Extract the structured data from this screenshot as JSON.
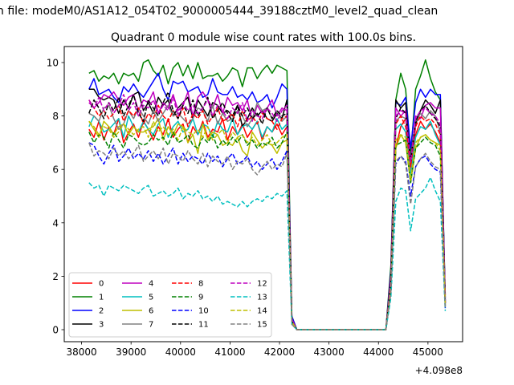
{
  "chart_data": {
    "type": "line",
    "suptitle": "n file: modeM0/AS1A12_054T02_9000005444_39188cztM0_level2_quad_clean",
    "title": "Quadrant 0 module wise count rates with 100.0s bins.",
    "xlabel": "",
    "ylabel": "",
    "x_offset_label": "+4.098e8",
    "xlim": [
      37650,
      45700
    ],
    "ylim": [
      -0.45,
      10.6
    ],
    "xticks": [
      38000,
      39000,
      40000,
      41000,
      42000,
      43000,
      44000,
      45000
    ],
    "yticks": [
      0,
      2,
      4,
      6,
      8,
      10
    ],
    "grid": false,
    "legend": {
      "placement": "lower-left",
      "columns": 4
    },
    "x": [
      38150,
      38250,
      38350,
      38450,
      38550,
      38650,
      38750,
      38850,
      38950,
      39050,
      39150,
      39250,
      39350,
      39450,
      39550,
      39650,
      39750,
      39850,
      39950,
      40050,
      40150,
      40250,
      40350,
      40450,
      40550,
      40650,
      40750,
      40850,
      40950,
      41050,
      41150,
      41250,
      41350,
      41450,
      41550,
      41650,
      41750,
      41850,
      41950,
      42050,
      42150,
      42250,
      42350,
      42450,
      42550,
      44150,
      44250,
      44350,
      44450,
      44550,
      44650,
      44750,
      44850,
      44950,
      45050,
      45150,
      45250,
      45350
    ],
    "series": [
      {
        "name": "0",
        "color": "#ff0000",
        "dash": "solid",
        "values": [
          7.5,
          7.2,
          7.8,
          7.1,
          7.6,
          7.3,
          7.9,
          7.0,
          7.4,
          7.7,
          7.2,
          7.8,
          7.5,
          7.1,
          7.6,
          7.3,
          7.9,
          7.2,
          7.5,
          7.7,
          7.0,
          7.6,
          7.3,
          7.8,
          7.2,
          7.5,
          7.4,
          7.9,
          7.1,
          7.6,
          7.3,
          7.7,
          7.2,
          7.5,
          7.8,
          7.1,
          7.6,
          7.4,
          7.7,
          7.3,
          7.6,
          0.4,
          0.0,
          0.0,
          0.0,
          0.0,
          1.4,
          6.8,
          7.6,
          7.9,
          6.1,
          7.3,
          7.8,
          7.5,
          7.7,
          7.4,
          7.0,
          1.3
        ]
      },
      {
        "name": "1",
        "color": "#008000",
        "dash": "solid",
        "values": [
          9.6,
          9.7,
          9.3,
          9.5,
          9.4,
          9.6,
          9.2,
          9.6,
          9.5,
          9.6,
          9.3,
          10.0,
          10.1,
          9.7,
          9.5,
          9.9,
          9.2,
          9.8,
          10.0,
          9.5,
          9.9,
          9.4,
          10.0,
          9.4,
          9.5,
          9.5,
          9.6,
          9.3,
          9.5,
          9.8,
          9.7,
          9.1,
          9.8,
          9.8,
          9.4,
          9.7,
          9.9,
          9.6,
          9.9,
          9.8,
          9.7,
          0.5,
          0.0,
          0.0,
          0.0,
          0.0,
          2.4,
          8.6,
          9.6,
          9.0,
          6.5,
          9.0,
          9.5,
          10.1,
          9.4,
          8.9,
          8.6,
          1.2
        ]
      },
      {
        "name": "2",
        "color": "#0000ff",
        "dash": "solid",
        "values": [
          9.0,
          9.4,
          8.8,
          8.9,
          9.0,
          8.7,
          8.5,
          9.1,
          8.9,
          9.2,
          8.9,
          8.7,
          9.0,
          9.3,
          9.6,
          9.0,
          8.6,
          9.3,
          9.2,
          9.3,
          8.9,
          9.0,
          9.1,
          8.7,
          8.8,
          9.4,
          8.9,
          8.8,
          8.8,
          9.1,
          8.7,
          8.8,
          8.6,
          8.9,
          8.5,
          8.6,
          8.8,
          8.3,
          8.7,
          9.2,
          9.0,
          0.5,
          0.0,
          0.0,
          0.0,
          0.0,
          2.2,
          8.5,
          8.4,
          8.7,
          6.8,
          8.5,
          9.0,
          8.7,
          9.0,
          8.8,
          8.8,
          1.1
        ]
      },
      {
        "name": "3",
        "color": "#000000",
        "dash": "solid",
        "values": [
          9.0,
          9.0,
          8.7,
          8.6,
          8.7,
          8.6,
          8.1,
          8.6,
          8.3,
          8.8,
          8.9,
          8.2,
          8.5,
          8.1,
          8.7,
          8.4,
          8.6,
          8.0,
          8.3,
          8.5,
          8.7,
          7.9,
          8.6,
          8.3,
          8.0,
          8.5,
          8.4,
          8.1,
          8.2,
          8.0,
          8.4,
          7.6,
          7.9,
          8.3,
          8.0,
          8.2,
          7.9,
          7.8,
          8.1,
          7.9,
          8.6,
          0.4,
          0.0,
          0.0,
          0.0,
          0.0,
          2.1,
          8.6,
          8.3,
          8.5,
          6.1,
          7.7,
          8.2,
          8.6,
          8.4,
          8.1,
          8.6,
          1.0
        ]
      },
      {
        "name": "4",
        "color": "#bf00bf",
        "dash": "solid",
        "values": [
          8.5,
          8.3,
          8.5,
          8.8,
          8.7,
          8.9,
          8.6,
          8.4,
          8.7,
          8.8,
          8.2,
          8.6,
          8.5,
          8.9,
          8.1,
          8.5,
          8.3,
          8.8,
          8.2,
          8.4,
          8.9,
          8.0,
          8.7,
          8.9,
          8.6,
          8.3,
          8.8,
          8.1,
          8.7,
          8.4,
          8.5,
          8.2,
          8.6,
          7.8,
          8.4,
          8.1,
          8.3,
          8.6,
          8.0,
          8.3,
          8.2,
          0.4,
          0.0,
          0.0,
          0.0,
          0.0,
          2.0,
          8.3,
          8.0,
          8.2,
          6.2,
          8.0,
          7.9,
          8.4,
          8.5,
          8.3,
          8.3,
          1.0
        ]
      },
      {
        "name": "5",
        "color": "#00bfbf",
        "dash": "solid",
        "values": [
          7.6,
          8.0,
          7.8,
          7.4,
          7.5,
          7.7,
          7.9,
          7.2,
          8.0,
          7.6,
          7.4,
          7.8,
          7.5,
          7.3,
          7.7,
          7.9,
          7.2,
          7.6,
          7.8,
          7.4,
          7.5,
          7.9,
          7.3,
          7.7,
          7.6,
          7.2,
          7.8,
          7.5,
          7.4,
          7.9,
          7.3,
          7.6,
          7.7,
          7.5,
          7.8,
          7.2,
          7.6,
          7.4,
          7.9,
          7.5,
          7.7,
          0.3,
          0.0,
          0.0,
          0.0,
          0.0,
          1.8,
          7.5,
          7.7,
          7.4,
          5.8,
          7.2,
          7.6,
          7.5,
          7.8,
          7.3,
          6.9,
          0.9
        ]
      },
      {
        "name": "6",
        "color": "#bfbf00",
        "dash": "solid",
        "values": [
          7.8,
          7.5,
          7.2,
          7.8,
          7.6,
          7.3,
          7.6,
          7.7,
          7.3,
          7.6,
          7.4,
          7.4,
          7.5,
          7.6,
          7.9,
          7.1,
          7.6,
          7.3,
          7.7,
          7.6,
          7.0,
          7.3,
          6.6,
          7.7,
          7.1,
          7.4,
          7.3,
          6.9,
          7.0,
          6.9,
          7.2,
          6.7,
          6.5,
          7.4,
          7.1,
          6.8,
          7.0,
          6.9,
          6.6,
          7.0,
          7.1,
          0.3,
          0.0,
          0.0,
          0.0,
          0.0,
          1.7,
          6.8,
          7.3,
          7.0,
          5.5,
          6.8,
          7.2,
          7.3,
          7.1,
          7.0,
          6.9,
          0.9
        ]
      },
      {
        "name": "7",
        "color": "#808080",
        "dash": "solid",
        "values": [
          8.1,
          8.0,
          7.8,
          8.3,
          8.4,
          7.9,
          7.5,
          7.7,
          8.2,
          7.9,
          8.3,
          8.0,
          7.7,
          8.2,
          7.8,
          8.1,
          8.4,
          8.0,
          8.1,
          7.9,
          7.7,
          7.9,
          8.3,
          8.2,
          7.8,
          8.4,
          7.7,
          8.1,
          7.8,
          7.9,
          8.2,
          8.0,
          7.6,
          7.9,
          8.5,
          8.2,
          8.3,
          7.9,
          8.2,
          7.8,
          8.0,
          0.3,
          0.0,
          0.0,
          0.0,
          0.0,
          1.8,
          7.8,
          8.0,
          7.9,
          6.0,
          7.8,
          8.1,
          7.9,
          8.2,
          8.0,
          7.4,
          0.9
        ]
      },
      {
        "name": "8",
        "color": "#ff0000",
        "dash": "dashed",
        "values": [
          8.6,
          8.3,
          8.0,
          8.2,
          7.9,
          8.1,
          8.4,
          7.8,
          8.2,
          8.0,
          8.3,
          7.7,
          8.1,
          7.9,
          8.4,
          8.0,
          7.8,
          8.2,
          7.9,
          8.3,
          7.6,
          8.1,
          7.9,
          8.2,
          7.7,
          8.0,
          8.3,
          7.8,
          7.9,
          8.1,
          7.6,
          8.2,
          7.8,
          8.0,
          7.7,
          8.1,
          7.9,
          7.8,
          7.5,
          7.9,
          8.0,
          0.3,
          0.0,
          0.0,
          0.0,
          0.0,
          1.7,
          7.7,
          8.0,
          7.6,
          6.1,
          7.6,
          8.0,
          7.8,
          7.9,
          7.7,
          7.3,
          1.1
        ]
      },
      {
        "name": "9",
        "color": "#008000",
        "dash": "dashed",
        "values": [
          7.4,
          7.0,
          7.3,
          7.2,
          6.8,
          7.4,
          7.1,
          6.8,
          7.3,
          7.2,
          7.0,
          6.9,
          7.0,
          7.3,
          7.1,
          7.2,
          6.9,
          7.4,
          7.0,
          7.1,
          7.3,
          6.9,
          6.8,
          7.2,
          7.0,
          7.3,
          6.8,
          7.1,
          6.9,
          7.2,
          7.0,
          7.3,
          6.9,
          7.1,
          6.8,
          7.0,
          6.9,
          7.2,
          6.8,
          7.0,
          7.4,
          0.3,
          0.0,
          0.0,
          0.0,
          0.0,
          1.5,
          6.9,
          7.0,
          7.1,
          5.5,
          6.8,
          7.0,
          7.2,
          7.0,
          6.9,
          6.5,
          0.8
        ]
      },
      {
        "name": "10",
        "color": "#0000ff",
        "dash": "dashed",
        "values": [
          7.0,
          6.9,
          6.5,
          6.2,
          6.6,
          6.9,
          6.3,
          6.5,
          6.8,
          6.4,
          6.6,
          6.4,
          6.7,
          6.3,
          6.6,
          6.2,
          6.5,
          6.8,
          6.2,
          6.6,
          6.3,
          6.5,
          6.4,
          6.2,
          6.6,
          6.3,
          6.5,
          6.1,
          6.4,
          6.6,
          6.2,
          6.3,
          6.5,
          6.1,
          6.3,
          6.0,
          6.2,
          6.4,
          6.0,
          6.3,
          6.7,
          0.3,
          0.0,
          0.0,
          0.0,
          0.0,
          1.5,
          6.2,
          6.5,
          6.3,
          5.0,
          6.1,
          6.4,
          6.5,
          6.2,
          6.0,
          5.9,
          0.8
        ]
      },
      {
        "name": "11",
        "color": "#000000",
        "dash": "dashed",
        "values": [
          8.1,
          8.6,
          8.3,
          7.9,
          8.5,
          8.2,
          8.7,
          8.0,
          8.4,
          8.8,
          8.1,
          7.8,
          8.6,
          8.3,
          8.0,
          8.5,
          8.9,
          8.2,
          7.9,
          8.4,
          8.1,
          8.6,
          8.0,
          8.3,
          8.7,
          7.9,
          8.2,
          8.5,
          8.1,
          7.8,
          8.4,
          8.0,
          8.3,
          7.9,
          8.1,
          7.7,
          8.3,
          7.9,
          8.2,
          8.0,
          8.1,
          0.3,
          0.0,
          0.0,
          0.0,
          0.0,
          1.8,
          7.9,
          8.3,
          8.1,
          6.3,
          7.8,
          8.2,
          8.4,
          8.1,
          7.9,
          7.6,
          1.0
        ]
      },
      {
        "name": "12",
        "color": "#bf00bf",
        "dash": "dashed",
        "values": [
          8.6,
          8.3,
          8.7,
          8.2,
          8.5,
          8.1,
          8.4,
          8.8,
          8.2,
          8.5,
          8.0,
          8.4,
          8.3,
          8.6,
          8.1,
          8.4,
          8.2,
          8.7,
          8.0,
          8.5,
          8.2,
          8.4,
          8.1,
          8.3,
          8.6,
          8.0,
          8.4,
          8.2,
          7.9,
          8.3,
          8.1,
          8.5,
          7.8,
          8.2,
          8.0,
          7.9,
          8.3,
          8.1,
          7.8,
          8.2,
          8.4,
          0.3,
          0.0,
          0.0,
          0.0,
          0.0,
          1.8,
          8.0,
          8.2,
          8.1,
          6.3,
          7.9,
          8.2,
          8.3,
          8.1,
          8.0,
          7.7,
          1.0
        ]
      },
      {
        "name": "13",
        "color": "#00bfbf",
        "dash": "dashed",
        "values": [
          5.5,
          5.3,
          5.4,
          5.0,
          5.4,
          5.3,
          5.2,
          5.4,
          5.3,
          5.2,
          5.1,
          5.3,
          5.4,
          5.0,
          5.1,
          5.2,
          5.0,
          5.1,
          5.3,
          4.9,
          5.1,
          5.0,
          5.2,
          4.9,
          5.0,
          4.8,
          5.0,
          4.7,
          4.8,
          4.7,
          4.6,
          4.8,
          4.6,
          4.8,
          4.9,
          4.8,
          5.0,
          4.9,
          5.1,
          5.0,
          5.2,
          0.2,
          0.0,
          0.0,
          0.0,
          0.0,
          1.2,
          4.8,
          5.3,
          5.2,
          3.7,
          4.9,
          5.1,
          5.3,
          5.7,
          5.2,
          4.8,
          0.7
        ]
      },
      {
        "name": "14",
        "color": "#bfbf00",
        "dash": "dashed",
        "values": [
          7.8,
          7.6,
          7.3,
          7.6,
          7.5,
          7.2,
          7.4,
          7.7,
          7.5,
          7.3,
          7.5,
          7.6,
          7.2,
          7.8,
          7.4,
          7.6,
          7.3,
          7.5,
          7.1,
          7.6,
          7.4,
          7.3,
          7.5,
          7.2,
          7.6,
          7.1,
          7.3,
          7.5,
          7.0,
          7.4,
          7.2,
          7.3,
          7.0,
          7.2,
          6.9,
          7.1,
          7.3,
          6.9,
          7.0,
          7.2,
          7.3,
          0.3,
          0.0,
          0.0,
          0.0,
          0.0,
          1.6,
          7.1,
          7.3,
          7.2,
          5.6,
          7.0,
          7.2,
          7.3,
          7.1,
          7.0,
          6.7,
          0.9
        ]
      },
      {
        "name": "15",
        "color": "#808080",
        "dash": "dashed",
        "values": [
          7.0,
          6.5,
          6.7,
          6.6,
          6.4,
          6.8,
          6.5,
          6.7,
          6.4,
          6.6,
          6.9,
          6.3,
          6.5,
          6.7,
          6.4,
          6.8,
          6.2,
          6.6,
          6.5,
          6.3,
          6.7,
          6.4,
          6.2,
          6.6,
          6.1,
          6.5,
          6.3,
          6.2,
          6.5,
          6.0,
          6.3,
          6.2,
          6.4,
          6.0,
          5.8,
          6.1,
          6.3,
          6.0,
          6.2,
          6.1,
          6.6,
          0.2,
          0.0,
          0.0,
          0.0,
          0.0,
          1.4,
          6.3,
          6.5,
          6.2,
          4.7,
          6.1,
          6.4,
          6.6,
          6.3,
          6.1,
          6.0,
          0.8
        ]
      }
    ]
  }
}
